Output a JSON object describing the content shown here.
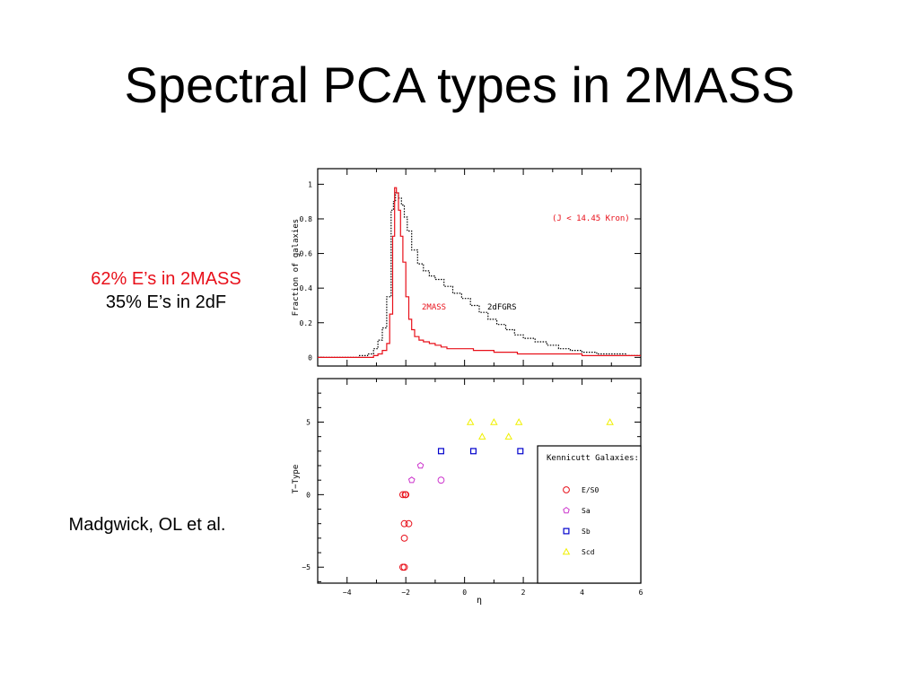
{
  "slide": {
    "title": "Spectral PCA types in 2MASS",
    "note_red": "62% E’s in 2MASS",
    "note_black": "35% E’s in 2dF",
    "credit": "Madgwick, OL  et al."
  },
  "colors": {
    "red": "#e8101a",
    "black": "#000000",
    "magenta": "#cc33cc",
    "blue": "#0000cc",
    "yellow": "#f0f000"
  },
  "chart_data": [
    {
      "type": "line",
      "ylabel": "Fraction of galaxies",
      "annotation": "(J < 14.45 Kron)",
      "xlim": [
        -5,
        6
      ],
      "ylim": [
        -0.05,
        1.09
      ],
      "yticks": [
        0,
        0.2,
        0.4,
        0.6,
        0.8,
        1
      ],
      "series": [
        {
          "name": "2dFGRS",
          "color": "#000000",
          "style": "dotted",
          "x": [
            -5.0,
            -4.5,
            -4.0,
            -3.6,
            -3.3,
            -3.1,
            -2.95,
            -2.8,
            -2.65,
            -2.5,
            -2.42,
            -2.35,
            -2.25,
            -2.15,
            -2.05,
            -1.95,
            -1.8,
            -1.6,
            -1.4,
            -1.2,
            -1.0,
            -0.7,
            -0.4,
            -0.1,
            0.2,
            0.5,
            0.8,
            1.1,
            1.4,
            1.7,
            2.0,
            2.4,
            2.8,
            3.2,
            3.6,
            4.0,
            4.5,
            5.0,
            5.5,
            6.0
          ],
          "values": [
            0.0,
            0.0,
            0.0,
            0.01,
            0.02,
            0.05,
            0.1,
            0.17,
            0.35,
            0.85,
            0.9,
            0.95,
            0.92,
            0.88,
            0.81,
            0.73,
            0.62,
            0.54,
            0.5,
            0.47,
            0.45,
            0.41,
            0.37,
            0.34,
            0.3,
            0.26,
            0.22,
            0.19,
            0.16,
            0.13,
            0.11,
            0.09,
            0.07,
            0.05,
            0.04,
            0.03,
            0.02,
            0.02,
            0.01,
            0.01
          ]
        },
        {
          "name": "2MASS",
          "color": "#e8101a",
          "style": "solid",
          "x": [
            -5.0,
            -4.5,
            -4.0,
            -3.6,
            -3.3,
            -3.1,
            -2.95,
            -2.8,
            -2.65,
            -2.55,
            -2.45,
            -2.38,
            -2.32,
            -2.25,
            -2.18,
            -2.1,
            -2.0,
            -1.9,
            -1.8,
            -1.7,
            -1.55,
            -1.4,
            -1.2,
            -1.0,
            -0.8,
            -0.6,
            -0.3,
            0.0,
            0.3,
            0.6,
            1.0,
            1.4,
            1.8,
            2.3,
            3.0,
            4.0,
            5.0,
            6.0
          ],
          "values": [
            0.0,
            0.0,
            0.0,
            0.0,
            0.0,
            0.01,
            0.02,
            0.04,
            0.08,
            0.25,
            0.7,
            0.98,
            0.95,
            0.85,
            0.7,
            0.55,
            0.35,
            0.22,
            0.16,
            0.12,
            0.1,
            0.09,
            0.08,
            0.07,
            0.06,
            0.05,
            0.05,
            0.05,
            0.04,
            0.04,
            0.03,
            0.03,
            0.02,
            0.02,
            0.02,
            0.01,
            0.01,
            0.01
          ]
        }
      ]
    },
    {
      "type": "scatter",
      "xlabel": "η",
      "ylabel": "T−Type",
      "xlim": [
        -5,
        6
      ],
      "ylim": [
        -6.1,
        8
      ],
      "xticks": [
        -4,
        -2,
        0,
        2,
        4,
        6
      ],
      "yticks": [
        -5,
        0,
        5
      ],
      "legend_title": "Kennicutt Galaxies:",
      "series": [
        {
          "name": "E/S0",
          "color": "#e8101a",
          "marker": "circle",
          "x": [
            -2.1,
            -2.05,
            -2.05,
            -2.05,
            -1.9,
            -2.02,
            -2.1,
            -2.0
          ],
          "y": [
            -5,
            -5,
            -3,
            -2,
            -2,
            0,
            0,
            0
          ]
        },
        {
          "name": "Sa",
          "color": "#cc33cc",
          "marker": "pentagon",
          "x": [
            -1.8,
            -1.5
          ],
          "y": [
            1,
            2
          ]
        },
        {
          "name": "Sb",
          "color": "#0000cc",
          "marker": "square",
          "x": [
            -0.8,
            0.3,
            1.9
          ],
          "y": [
            3,
            3,
            3
          ]
        },
        {
          "name": "Scd",
          "color": "#f0f000",
          "marker": "triangle",
          "x": [
            0.2,
            0.6,
            1.0,
            1.5,
            1.85,
            4.95
          ],
          "y": [
            5,
            4,
            5,
            4,
            5,
            5
          ]
        }
      ],
      "extra_points": [
        {
          "x": -0.8,
          "y": 1,
          "marker": "circle",
          "color": "#cc33cc"
        }
      ]
    }
  ]
}
